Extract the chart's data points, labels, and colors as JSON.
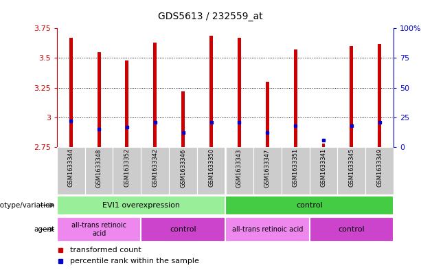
{
  "title": "GDS5613 / 232559_at",
  "samples": [
    "GSM1633344",
    "GSM1633348",
    "GSM1633352",
    "GSM1633342",
    "GSM1633346",
    "GSM1633350",
    "GSM1633343",
    "GSM1633347",
    "GSM1633351",
    "GSM1633341",
    "GSM1633345",
    "GSM1633349"
  ],
  "transformed_count": [
    3.67,
    3.55,
    3.48,
    3.63,
    3.22,
    3.69,
    3.67,
    3.3,
    3.57,
    2.78,
    3.6,
    3.62
  ],
  "bar_bottom": 2.75,
  "percentile_values": [
    2.97,
    2.9,
    2.92,
    2.96,
    2.87,
    2.96,
    2.96,
    2.87,
    2.93,
    2.81,
    2.93,
    2.96
  ],
  "ylim_left": [
    2.75,
    3.75
  ],
  "ylim_right": [
    0,
    100
  ],
  "yticks_left": [
    2.75,
    3.0,
    3.25,
    3.5,
    3.75
  ],
  "ytick_labels_left": [
    "2.75",
    "3",
    "3.25",
    "3.5",
    "3.75"
  ],
  "yticks_right": [
    0,
    25,
    50,
    75,
    100
  ],
  "ytick_labels_right": [
    "0",
    "25",
    "50",
    "75",
    "100%"
  ],
  "bar_color": "#cc0000",
  "percentile_color": "#0000cc",
  "bar_width": 0.12,
  "genotype_groups": [
    {
      "label": "EVI1 overexpression",
      "start": 0,
      "end": 6,
      "color": "#99ee99"
    },
    {
      "label": "control",
      "start": 6,
      "end": 12,
      "color": "#44cc44"
    }
  ],
  "agent_groups": [
    {
      "label": "all-trans retinoic\nacid",
      "start": 0,
      "end": 3,
      "color": "#ee88ee"
    },
    {
      "label": "control",
      "start": 3,
      "end": 6,
      "color": "#cc44cc"
    },
    {
      "label": "all-trans retinoic acid",
      "start": 6,
      "end": 9,
      "color": "#ee88ee"
    },
    {
      "label": "control",
      "start": 9,
      "end": 12,
      "color": "#cc44cc"
    }
  ],
  "legend_items": [
    {
      "label": "transformed count",
      "color": "#cc0000"
    },
    {
      "label": "percentile rank within the sample",
      "color": "#0000cc"
    }
  ],
  "left_label_genotype": "genotype/variation",
  "left_label_agent": "agent",
  "tick_color_left": "#cc0000",
  "tick_color_right": "#0000cc",
  "sample_bg_color": "#cccccc",
  "grid_ticks": [
    3.0,
    3.25,
    3.5
  ]
}
